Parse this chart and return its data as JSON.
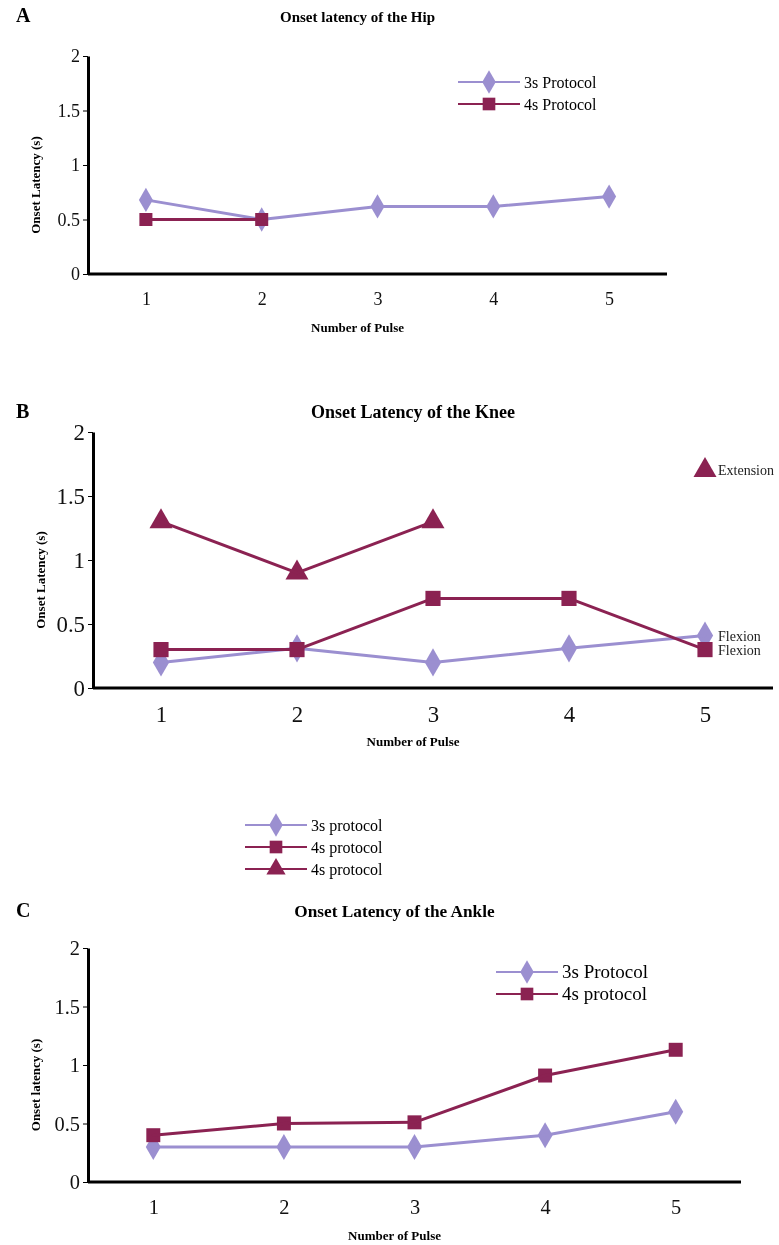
{
  "chart_data": [
    {
      "type": "line",
      "title": "Onset latency of the Hip",
      "xlabel": "Number of Pulse",
      "ylabel": "Onset Latency (s)",
      "annotations": [
        "A"
      ],
      "categories": [
        "1",
        "2",
        "3",
        "4",
        "5"
      ],
      "ylim": [
        0,
        2
      ],
      "yticks": [
        0,
        0.5,
        1,
        1.5,
        2
      ],
      "grid": false,
      "legend": "top right",
      "series": [
        {
          "name": "3s Protocol",
          "color": "#9b8fd0",
          "marker": "diamond",
          "values": [
            0.68,
            0.5,
            0.62,
            0.62,
            0.71
          ]
        },
        {
          "name": "4s Protocol",
          "color": "#8b2252",
          "marker": "square",
          "values": [
            0.5,
            0.5,
            null,
            null,
            null
          ]
        }
      ]
    },
    {
      "type": "line",
      "title": "Onset Latency of the Knee",
      "xlabel": "Number of Pulse",
      "ylabel": "Onset Latency (s)",
      "annotations": [
        "B",
        {
          "text": "Extension",
          "x": "5",
          "y": 1.7
        },
        {
          "text": "Flexion",
          "x": "5",
          "y": 0.41
        },
        {
          "text": "Flexion",
          "x": "5",
          "y": 0.3
        }
      ],
      "categories": [
        "1",
        "2",
        "3",
        "4",
        "5"
      ],
      "ylim": [
        0,
        2
      ],
      "yticks": [
        0,
        0.5,
        1,
        1.5,
        2
      ],
      "grid": false,
      "legend": "bottom",
      "series": [
        {
          "name": "3s protocol",
          "color": "#9b8fd0",
          "marker": "diamond",
          "values": [
            0.2,
            0.31,
            0.2,
            0.31,
            0.41
          ]
        },
        {
          "name": "4s protocol",
          "color": "#8b2252",
          "marker": "square",
          "values": [
            0.3,
            0.3,
            0.7,
            0.7,
            0.3
          ]
        },
        {
          "name": "4s protocol",
          "color": "#8b2252",
          "marker": "triangle",
          "values": [
            1.3,
            0.9,
            1.3,
            null,
            1.7
          ]
        }
      ]
    },
    {
      "type": "line",
      "title": "Onset Latency of the Ankle",
      "xlabel": "Number of Pulse",
      "ylabel": "Onset latency (s)",
      "annotations": [
        "C"
      ],
      "categories": [
        "1",
        "2",
        "3",
        "4",
        "5"
      ],
      "ylim": [
        0,
        2
      ],
      "yticks": [
        0,
        0.5,
        1,
        1.5,
        2
      ],
      "grid": false,
      "legend": "top right",
      "series": [
        {
          "name": "3s Protocol",
          "color": "#9b8fd0",
          "marker": "diamond",
          "values": [
            0.3,
            0.3,
            0.3,
            0.4,
            0.6
          ]
        },
        {
          "name": "4s protocol",
          "color": "#8b2252",
          "marker": "square",
          "values": [
            0.4,
            0.5,
            0.51,
            0.91,
            1.13
          ]
        }
      ]
    }
  ]
}
